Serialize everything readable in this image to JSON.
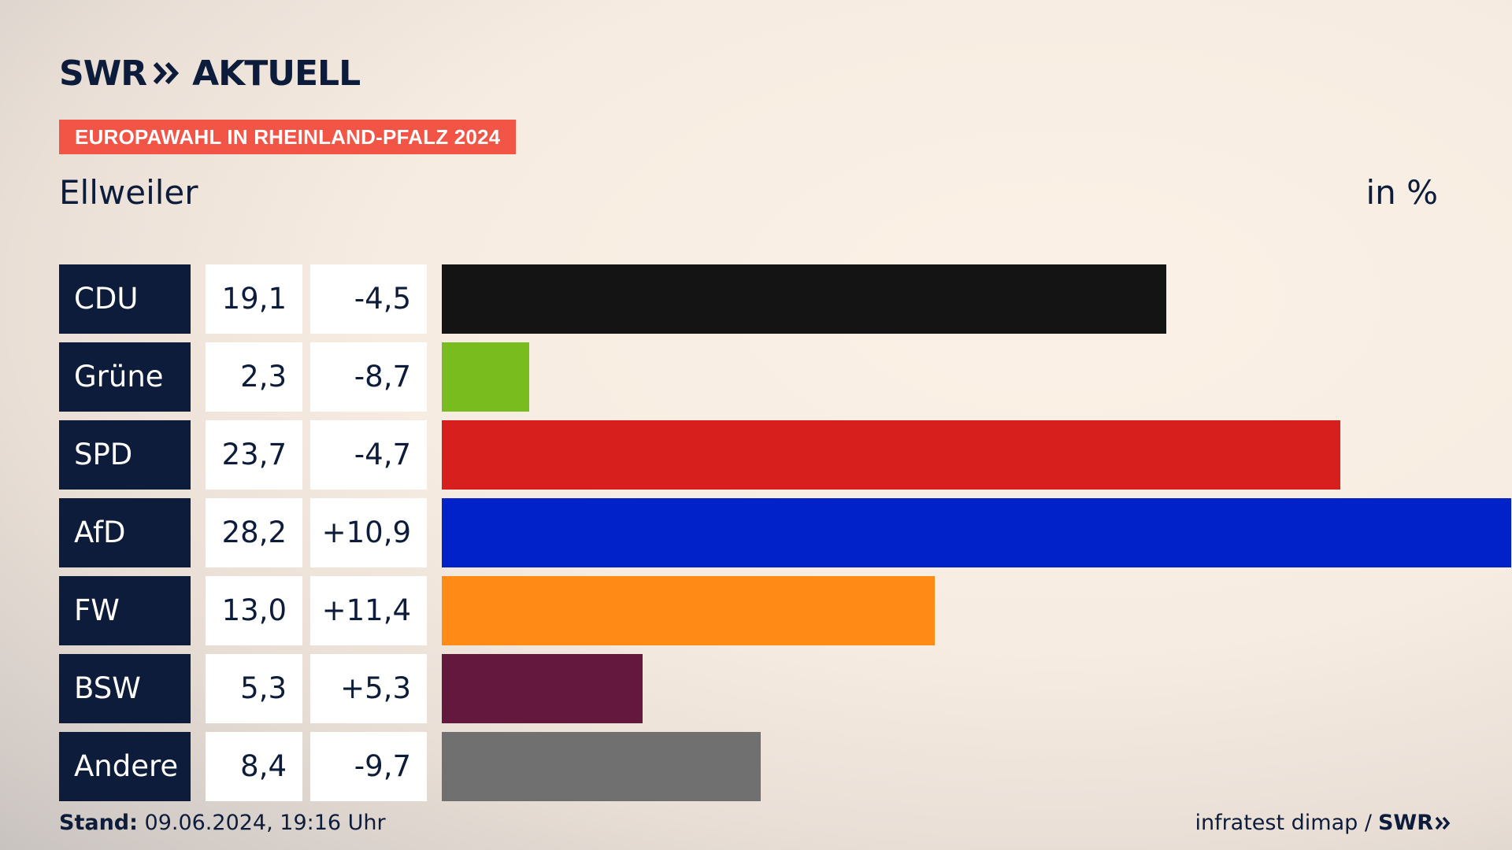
{
  "header": {
    "logo_brand": "SWR",
    "logo_text": "AKTUELL",
    "banner": "EUROPAWAHL IN RHEINLAND-PFALZ 2024"
  },
  "chart_data": {
    "type": "bar",
    "subtitle": "Ellweiler",
    "unit_label": "in %",
    "categories": [
      "CDU",
      "Grüne",
      "SPD",
      "AfD",
      "FW",
      "BSW",
      "Andere"
    ],
    "series": [
      {
        "values": [
          19.1,
          2.3,
          23.7,
          28.2,
          13.0,
          5.3,
          8.4
        ]
      }
    ],
    "value_labels": [
      "19,1",
      "2,3",
      "23,7",
      "28,2",
      "13,0",
      "5,3",
      "8,4"
    ],
    "diff_labels": [
      "-4,5",
      "-8,7",
      "-4,7",
      "+10,9",
      "+11,4",
      "+5,3",
      "-9,7"
    ],
    "colors": [
      "#141414",
      "#78bc1e",
      "#d7201e",
      "#0121c9",
      "#ff8a15",
      "#65183e",
      "#707070"
    ],
    "xlim": [
      0,
      28.2
    ]
  },
  "footer": {
    "stand_label": "Stand:",
    "stand_value": "09.06.2024, 19:16 Uhr",
    "source": "infratest dimap /",
    "source_logo": "SWR"
  }
}
